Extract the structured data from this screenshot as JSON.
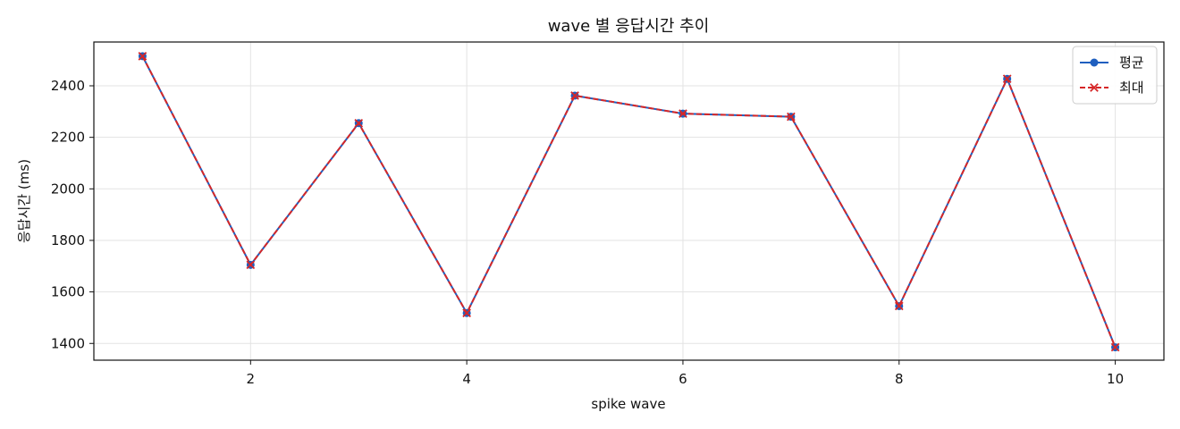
{
  "chart_data": {
    "type": "line",
    "title": "wave 별 응답시간 추이",
    "xlabel": "spike wave",
    "ylabel": "응답시간 (ms)",
    "x": [
      1,
      2,
      3,
      4,
      5,
      6,
      7,
      8,
      9,
      10
    ],
    "xticks": [
      2,
      4,
      6,
      8,
      10
    ],
    "yticks": [
      1400,
      1600,
      1800,
      2000,
      2200,
      2400
    ],
    "xlim": [
      0.55,
      10.45
    ],
    "ylim": [
      1335,
      2570
    ],
    "grid": true,
    "legend_position": "top-right",
    "series": [
      {
        "name": "평균",
        "values": [
          2515,
          1705,
          2255,
          1518,
          2362,
          2292,
          2280,
          1545,
          2427,
          1385
        ],
        "color": "#1f5fbf",
        "marker": "circle",
        "linestyle": "solid"
      },
      {
        "name": "최대",
        "values": [
          2515,
          1705,
          2255,
          1518,
          2362,
          2292,
          2280,
          1545,
          2427,
          1385
        ],
        "color": "#d62728",
        "marker": "x",
        "linestyle": "dashed"
      }
    ]
  }
}
